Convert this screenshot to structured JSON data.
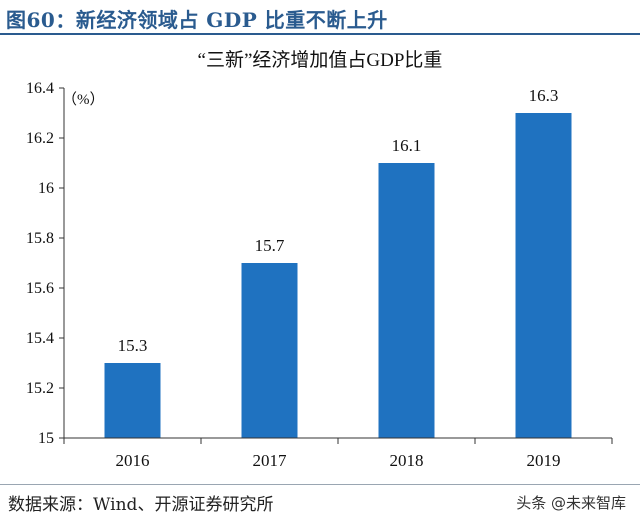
{
  "header": {
    "figure_title": "图60：新经济领域占 GDP 比重不断上升"
  },
  "chart_data": {
    "type": "bar",
    "title": "“三新”经济增加值占GDP比重",
    "unit_label": "（%）",
    "categories": [
      "2016",
      "2017",
      "2018",
      "2019"
    ],
    "values": [
      15.3,
      15.7,
      16.1,
      16.3
    ],
    "data_labels": [
      "15.3",
      "15.7",
      "16.1",
      "16.3"
    ],
    "ylim": [
      15,
      16.4
    ],
    "y_ticks": [
      "15",
      "15.2",
      "15.4",
      "15.6",
      "15.8",
      "16",
      "16.2",
      "16.4"
    ],
    "y_tick_values": [
      15,
      15.2,
      15.4,
      15.6,
      15.8,
      16,
      16.2,
      16.4
    ],
    "grid": false,
    "bar_color": "#1f72c0"
  },
  "footer": {
    "source": "数据来源：Wind、开源证券研究所",
    "watermark": "头条 @未来智库"
  }
}
